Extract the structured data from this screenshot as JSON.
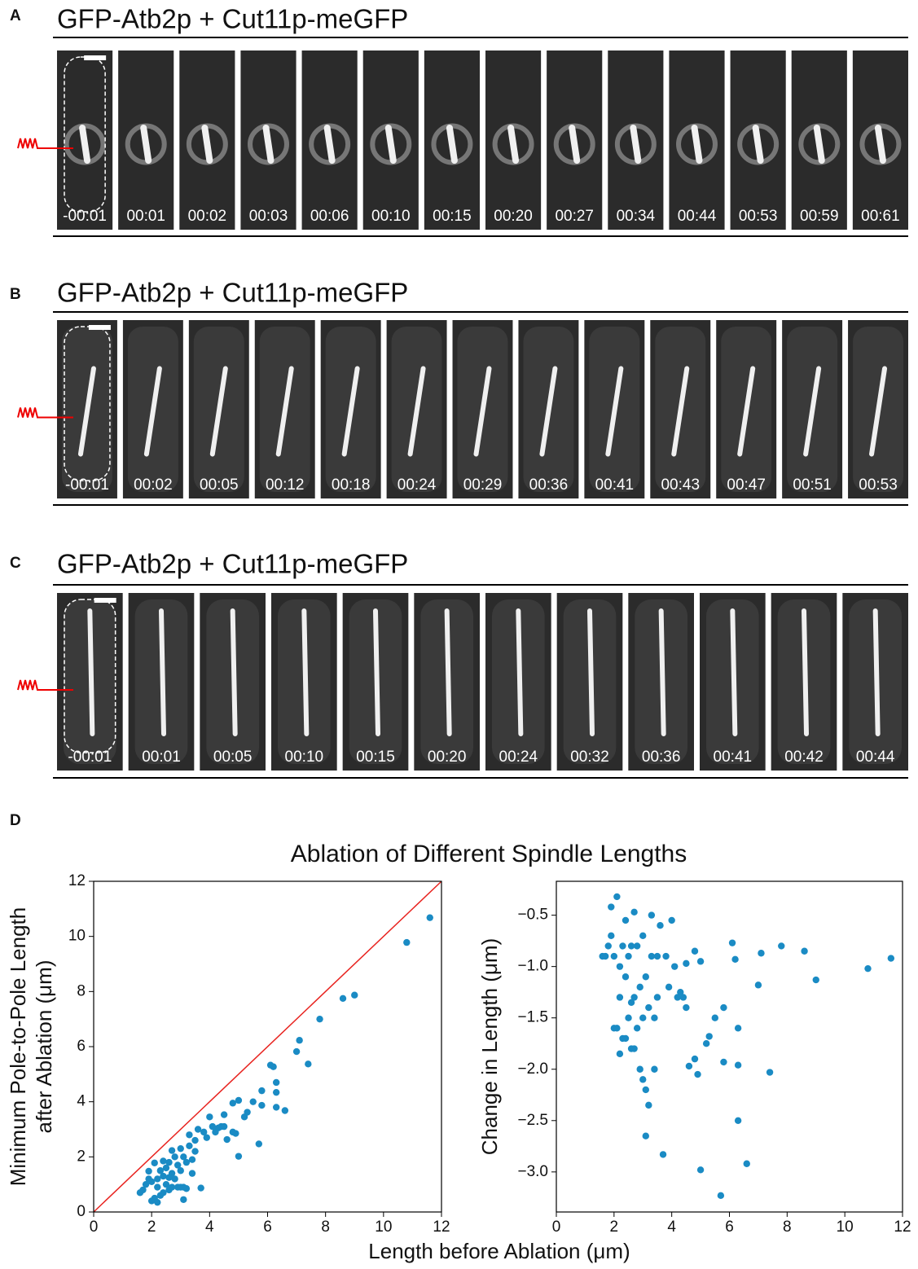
{
  "panels": [
    {
      "label": "A",
      "title": "GFP-Atb2p + Cut11p-meGFP",
      "timestamps": [
        "-00:01",
        "00:01",
        "00:02",
        "00:03",
        "00:06",
        "00:10",
        "00:15",
        "00:20",
        "00:27",
        "00:34",
        "00:44",
        "00:53",
        "00:59",
        "00:61"
      ]
    },
    {
      "label": "B",
      "title": "GFP-Atb2p + Cut11p-meGFP",
      "timestamps": [
        "-00:01",
        "00:02",
        "00:05",
        "00:12",
        "00:18",
        "00:24",
        "00:29",
        "00:36",
        "00:41",
        "00:43",
        "00:47",
        "00:51",
        "00:53"
      ]
    },
    {
      "label": "C",
      "title": "GFP-Atb2p + Cut11p-meGFP",
      "timestamps": [
        "-00:01",
        "00:01",
        "00:05",
        "00:10",
        "00:15",
        "00:20",
        "00:24",
        "00:32",
        "00:36",
        "00:41",
        "00:42",
        "00:44"
      ]
    }
  ],
  "panel_d": {
    "label": "D",
    "title": "Ablation of Different Spindle Lengths",
    "xlabel": "Length before Ablation (μm)"
  },
  "chart_data": [
    {
      "type": "scatter",
      "color": "#1a8bc4",
      "diagonal_line_color": "#e8231f",
      "ylabel": [
        "Minimum Pole-to-Pole Length",
        "after Ablation (μm)"
      ],
      "xlim": [
        0,
        12
      ],
      "ylim": [
        0,
        12
      ],
      "xticks": [
        0,
        2,
        4,
        6,
        8,
        10,
        12
      ],
      "yticks": [
        0,
        2,
        4,
        6,
        8,
        10,
        12
      ],
      "x": [
        2.1,
        1.9,
        11.6,
        10.8,
        9.0,
        8.6,
        7.8,
        7.0,
        7.1,
        5.7,
        5.0,
        6.6,
        6.3,
        3.7,
        3.1,
        3.2,
        3.1,
        3.0,
        4.9,
        7.4,
        6.3,
        5.8,
        4.8,
        4.6,
        5.2,
        5.3,
        5.5,
        5.8,
        6.3,
        6.1,
        6.2,
        5.0,
        4.8,
        4.5,
        4.4,
        4.5,
        4.3,
        4.0,
        3.6,
        3.3,
        2.7,
        2.4,
        1.6,
        1.7,
        1.8,
        2.0,
        2.0,
        2.1,
        2.2,
        2.2,
        2.3,
        2.3,
        2.4,
        2.4,
        2.5,
        2.5,
        2.6,
        2.6,
        2.7,
        2.7,
        2.8,
        2.8,
        2.9,
        2.9,
        3.0,
        3.0,
        3.1,
        3.2,
        3.3,
        3.4,
        3.5,
        3.5,
        3.8,
        3.9,
        4.1,
        4.2,
        3.4,
        2.2,
        1.9,
        2.6
      ],
      "values": [
        1.78,
        1.48,
        10.68,
        9.78,
        7.87,
        7.75,
        7.0,
        5.82,
        6.23,
        2.47,
        2.02,
        3.68,
        3.8,
        0.87,
        0.45,
        0.85,
        0.9,
        0.9,
        2.85,
        5.37,
        4.34,
        3.87,
        2.9,
        2.63,
        3.45,
        3.62,
        4.0,
        4.4,
        4.7,
        5.33,
        5.27,
        4.05,
        3.95,
        3.53,
        3.1,
        3.1,
        3.05,
        3.45,
        3.0,
        2.8,
        2.23,
        1.85,
        0.7,
        0.8,
        1.0,
        1.1,
        0.4,
        0.5,
        1.2,
        0.9,
        1.5,
        0.6,
        0.7,
        1.3,
        1.6,
        1.0,
        1.8,
        0.8,
        1.4,
        0.9,
        2.0,
        1.2,
        1.7,
        0.9,
        2.3,
        1.5,
        2.0,
        1.8,
        2.4,
        1.9,
        2.6,
        2.2,
        2.9,
        2.7,
        3.1,
        2.9,
        1.4,
        0.35,
        1.2,
        1.25
      ]
    },
    {
      "type": "scatter",
      "color": "#1a8bc4",
      "ylabel": [
        "Change in Length (μm)"
      ],
      "xlim": [
        0,
        12
      ],
      "ylim": [
        -3.39,
        -0.17
      ],
      "xticks": [
        0,
        2,
        4,
        6,
        8,
        10,
        12
      ],
      "yticks": [
        {
          "value": -0.5,
          "label": "−0.5"
        },
        {
          "value": -1.0,
          "label": "−1.0"
        },
        {
          "value": -1.5,
          "label": "−1.5"
        },
        {
          "value": -2.0,
          "label": "−2.0"
        },
        {
          "value": -2.5,
          "label": "−2.5"
        },
        {
          "value": -3.0,
          "label": "−3.0"
        }
      ],
      "x": [
        2.1,
        1.9,
        11.6,
        10.8,
        9.0,
        8.6,
        7.8,
        7.0,
        7.1,
        5.7,
        5.0,
        6.6,
        6.3,
        3.7,
        3.1,
        3.2,
        3.1,
        3.0,
        4.9,
        7.4,
        6.3,
        5.8,
        4.8,
        4.6,
        5.2,
        5.3,
        5.5,
        5.8,
        6.3,
        6.1,
        6.2,
        5.0,
        4.8,
        4.5,
        4.4,
        4.5,
        4.3,
        4.0,
        3.6,
        3.3,
        2.7,
        2.4,
        1.6,
        1.7,
        1.8,
        2.0,
        2.0,
        2.1,
        2.2,
        2.2,
        2.3,
        2.3,
        2.4,
        2.4,
        2.5,
        2.5,
        2.6,
        2.6,
        2.7,
        2.7,
        2.8,
        2.8,
        2.9,
        2.9,
        3.0,
        3.0,
        3.1,
        3.2,
        3.3,
        3.4,
        3.5,
        3.5,
        3.8,
        3.9,
        4.1,
        4.2,
        3.4,
        2.2,
        1.9,
        2.6
      ],
      "values": [
        -0.32,
        -0.42,
        -0.92,
        -1.02,
        -1.13,
        -0.85,
        -0.8,
        -1.18,
        -0.87,
        -3.23,
        -2.98,
        -2.92,
        -2.5,
        -2.83,
        -2.65,
        -2.35,
        -2.2,
        -2.1,
        -2.05,
        -2.03,
        -1.96,
        -1.93,
        -1.9,
        -1.97,
        -1.75,
        -1.68,
        -1.5,
        -1.4,
        -1.6,
        -0.77,
        -0.93,
        -0.95,
        -0.85,
        -0.97,
        -1.3,
        -1.4,
        -1.25,
        -0.55,
        -0.6,
        -0.5,
        -0.47,
        -0.55,
        -0.9,
        -0.9,
        -0.8,
        -0.9,
        -1.6,
        -1.6,
        -1.0,
        -1.3,
        -0.8,
        -1.7,
        -1.7,
        -1.1,
        -0.9,
        -1.5,
        -0.8,
        -1.8,
        -1.3,
        -1.8,
        -0.8,
        -1.6,
        -1.2,
        -2.0,
        -0.7,
        -1.5,
        -1.1,
        -1.4,
        -0.9,
        -1.5,
        -0.9,
        -1.3,
        -0.9,
        -1.2,
        -1.0,
        -1.3,
        -2.0,
        -1.85,
        -0.7,
        -1.35
      ]
    }
  ]
}
